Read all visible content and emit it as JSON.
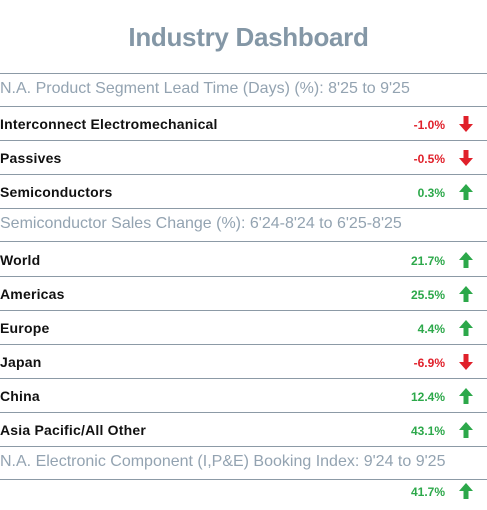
{
  "dashboard": {
    "title": "Industry Dashboard"
  },
  "colors": {
    "title": "#8497a6",
    "section_heading": "#93a3b1",
    "positive": "#2ca84a",
    "negative": "#e0202a"
  },
  "lead_time": {
    "heading": "N.A. Product Segment Lead Time (Days) (%): 8'25 to 9'25",
    "rows": [
      {
        "label": "Interconnect Electromechanical",
        "value": "-1.0%",
        "direction": "down",
        "icon": "arrow-down-icon"
      },
      {
        "label": "Passives",
        "value": "-0.5%",
        "direction": "down",
        "icon": "arrow-down-icon"
      },
      {
        "label": "Semiconductors",
        "value": "0.3%",
        "direction": "up",
        "icon": "arrow-up-icon"
      }
    ]
  },
  "sales_change": {
    "heading": "Semiconductor Sales Change (%): 6'24-8'24 to 6'25-8'25",
    "rows": [
      {
        "label": "World",
        "value": "21.7%",
        "direction": "up",
        "icon": "arrow-up-icon"
      },
      {
        "label": "Americas",
        "value": "25.5%",
        "direction": "up",
        "icon": "arrow-up-icon"
      },
      {
        "label": "Europe",
        "value": "4.4%",
        "direction": "up",
        "icon": "arrow-up-icon"
      },
      {
        "label": "Japan",
        "value": "-6.9%",
        "direction": "down",
        "icon": "arrow-down-icon"
      },
      {
        "label": "China",
        "value": "12.4%",
        "direction": "up",
        "icon": "arrow-up-icon"
      },
      {
        "label": "Asia Pacific/All Other",
        "value": "43.1%",
        "direction": "up",
        "icon": "arrow-up-icon"
      }
    ]
  },
  "booking_index": {
    "heading": "N.A. Electronic Component (I,P&E) Booking Index: 9'24 to 9'25",
    "rows": [
      {
        "label": "",
        "value": "41.7%",
        "direction": "up",
        "icon": "arrow-up-icon"
      }
    ]
  }
}
